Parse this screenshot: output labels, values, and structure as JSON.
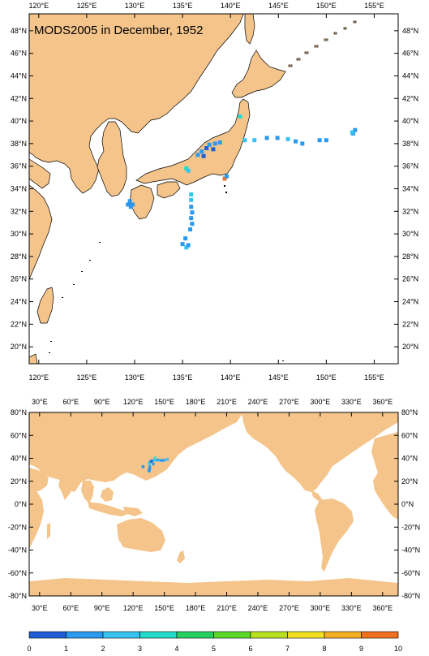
{
  "title": "MODS2005 in December, 1952",
  "regional_map": {
    "lon_labels": [
      "120°E",
      "125°E",
      "130°E",
      "135°E",
      "140°E",
      "145°E",
      "150°E",
      "155°E"
    ],
    "lat_labels": [
      "48°N",
      "46°N",
      "44°N",
      "42°N",
      "40°N",
      "38°N",
      "36°N",
      "34°N",
      "32°N",
      "30°N",
      "28°N",
      "26°N",
      "24°N",
      "22°N",
      "20°N"
    ],
    "lon_range": [
      119,
      157.5
    ],
    "lat_range": [
      18.5,
      49.5
    ]
  },
  "global_map": {
    "lon_labels": [
      "30°E",
      "60°E",
      "90°E",
      "120°E",
      "150°E",
      "180°E",
      "210°E",
      "240°E",
      "270°E",
      "300°E",
      "330°E",
      "360°E"
    ],
    "lat_labels": [
      "80°N",
      "60°N",
      "40°N",
      "20°N",
      "0°N",
      "-20°N",
      "-40°N",
      "-60°N",
      "-80°N"
    ],
    "lon_range": [
      20,
      375
    ],
    "lat_range": [
      -80,
      80
    ]
  },
  "colorbar": {
    "labels": [
      "0",
      "1",
      "2",
      "3",
      "4",
      "5",
      "6",
      "7",
      "8",
      "9",
      "10"
    ],
    "colors": [
      "#1e5fd6",
      "#2a9af0",
      "#36c3f0",
      "#20dcc8",
      "#26d060",
      "#5cd828",
      "#b8e020",
      "#f2e020",
      "#f4b020",
      "#f07020"
    ]
  },
  "land_color": "#f4c48a",
  "observations": [
    {
      "lon": 137.0,
      "lat": 37.3,
      "v": 1
    },
    {
      "lon": 137.5,
      "lat": 37.6,
      "v": 0
    },
    {
      "lon": 137.8,
      "lat": 37.9,
      "v": 1
    },
    {
      "lon": 138.2,
      "lat": 37.5,
      "v": 0
    },
    {
      "lon": 138.4,
      "lat": 38.0,
      "v": 1
    },
    {
      "lon": 136.6,
      "lat": 37.0,
      "v": 1
    },
    {
      "lon": 138.9,
      "lat": 38.1,
      "v": 1
    },
    {
      "lon": 137.2,
      "lat": 36.9,
      "v": 0
    },
    {
      "lon": 135.4,
      "lat": 35.8,
      "v": 3
    },
    {
      "lon": 135.6,
      "lat": 35.6,
      "v": 2
    },
    {
      "lon": 129.3,
      "lat": 32.6,
      "v": 1
    },
    {
      "lon": 129.6,
      "lat": 32.4,
      "v": 1
    },
    {
      "lon": 129.5,
      "lat": 32.9,
      "v": 1
    },
    {
      "lon": 129.8,
      "lat": 32.6,
      "v": 1
    },
    {
      "lon": 135.9,
      "lat": 33.5,
      "v": 2
    },
    {
      "lon": 135.9,
      "lat": 33.0,
      "v": 2
    },
    {
      "lon": 135.9,
      "lat": 32.4,
      "v": 1
    },
    {
      "lon": 136.0,
      "lat": 31.9,
      "v": 1
    },
    {
      "lon": 135.9,
      "lat": 31.4,
      "v": 1
    },
    {
      "lon": 136.0,
      "lat": 30.9,
      "v": 1
    },
    {
      "lon": 135.8,
      "lat": 30.4,
      "v": 1
    },
    {
      "lon": 135.3,
      "lat": 29.6,
      "v": 1
    },
    {
      "lon": 135.0,
      "lat": 29.1,
      "v": 1
    },
    {
      "lon": 135.4,
      "lat": 28.8,
      "v": 2
    },
    {
      "lon": 135.6,
      "lat": 29.0,
      "v": 1
    },
    {
      "lon": 139.4,
      "lat": 34.9,
      "v": 9
    },
    {
      "lon": 139.6,
      "lat": 35.1,
      "v": 1
    },
    {
      "lon": 141.0,
      "lat": 40.4,
      "v": 3
    },
    {
      "lon": 141.5,
      "lat": 38.3,
      "v": 2
    },
    {
      "lon": 142.5,
      "lat": 38.3,
      "v": 2
    },
    {
      "lon": 143.8,
      "lat": 38.5,
      "v": 1
    },
    {
      "lon": 144.9,
      "lat": 38.5,
      "v": 1
    },
    {
      "lon": 146.0,
      "lat": 38.4,
      "v": 2
    },
    {
      "lon": 146.8,
      "lat": 38.2,
      "v": 1
    },
    {
      "lon": 147.5,
      "lat": 38.0,
      "v": 1
    },
    {
      "lon": 149.3,
      "lat": 38.3,
      "v": 1
    },
    {
      "lon": 150.0,
      "lat": 38.3,
      "v": 1
    },
    {
      "lon": 152.8,
      "lat": 38.9,
      "v": 1
    },
    {
      "lon": 153.0,
      "lat": 39.2,
      "v": 1
    },
    {
      "lon": 152.7,
      "lat": 39.0,
      "v": 2
    }
  ]
}
